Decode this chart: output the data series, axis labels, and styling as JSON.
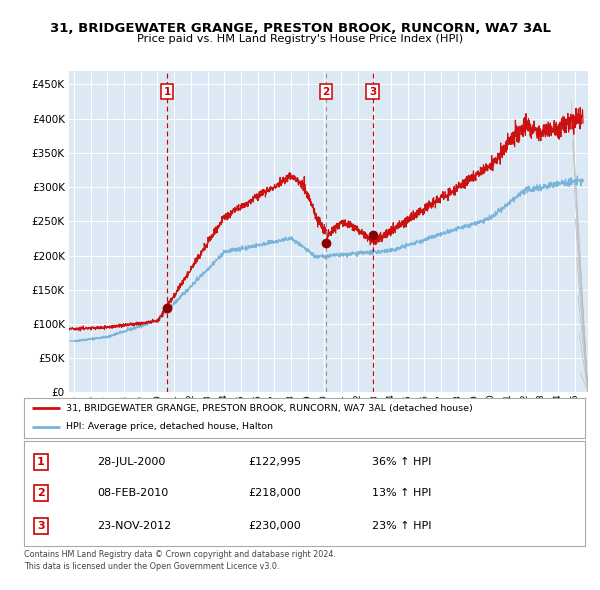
{
  "title": "31, BRIDGEWATER GRANGE, PRESTON BROOK, RUNCORN, WA7 3AL",
  "subtitle": "Price paid vs. HM Land Registry's House Price Index (HPI)",
  "bg_color": "#dce9f5",
  "fig_bg_color": "#ffffff",
  "red_line_label": "31, BRIDGEWATER GRANGE, PRESTON BROOK, RUNCORN, WA7 3AL (detached house)",
  "blue_line_label": "HPI: Average price, detached house, Halton",
  "sale_points": [
    {
      "label": "1",
      "date_x": 2000.57,
      "price": 122995,
      "vline_color": "#cc0000",
      "vline_style": "dashed"
    },
    {
      "label": "2",
      "date_x": 2010.1,
      "price": 218000,
      "vline_color": "#999999",
      "vline_style": "dashed"
    },
    {
      "label": "3",
      "date_x": 2012.9,
      "price": 230000,
      "vline_color": "#cc0000",
      "vline_style": "dashed"
    }
  ],
  "table_rows": [
    {
      "num": "1",
      "date": "28-JUL-2000",
      "price": "£122,995",
      "change": "36% ↑ HPI"
    },
    {
      "num": "2",
      "date": "08-FEB-2010",
      "price": "£218,000",
      "change": "13% ↑ HPI"
    },
    {
      "num": "3",
      "date": "23-NOV-2012",
      "price": "£230,000",
      "change": "23% ↑ HPI"
    }
  ],
  "footer": "Contains HM Land Registry data © Crown copyright and database right 2024.\nThis data is licensed under the Open Government Licence v3.0.",
  "ylim": [
    0,
    470000
  ],
  "xlim_start": 1994.7,
  "xlim_end": 2025.8,
  "yticks": [
    0,
    50000,
    100000,
    150000,
    200000,
    250000,
    300000,
    350000,
    400000,
    450000
  ]
}
